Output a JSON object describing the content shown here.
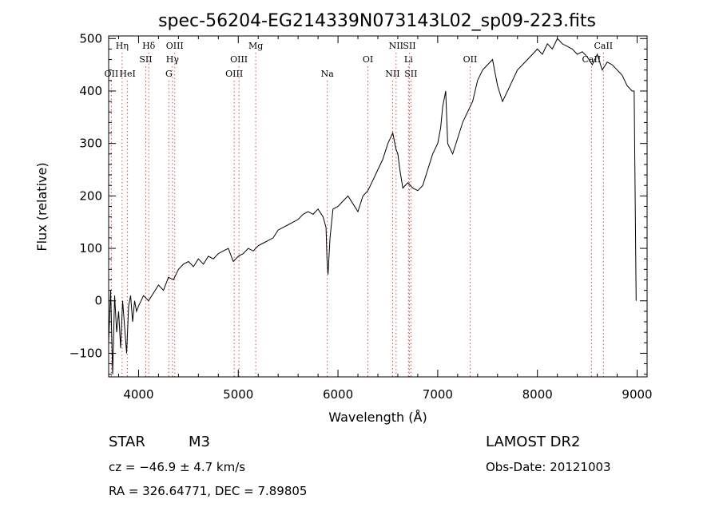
{
  "chart_data": {
    "type": "line",
    "title": "spec-56204-EG214339N073143L02_sp09-223.fits",
    "xlabel": "Wavelength (Å)",
    "ylabel": "Flux (relative)",
    "xlim": [
      3700,
      9100
    ],
    "ylim": [
      -145,
      505
    ],
    "xticks": [
      4000,
      5000,
      6000,
      7000,
      8000,
      9000
    ],
    "yticks": [
      -100,
      0,
      100,
      200,
      300,
      400,
      500
    ],
    "series": [
      {
        "x": [
          3700,
          3720,
          3740,
          3760,
          3780,
          3800,
          3820,
          3840,
          3860,
          3880,
          3900,
          3920,
          3940,
          3960,
          3980,
          4000,
          4050,
          4100,
          4150,
          4200,
          4250,
          4300,
          4350,
          4400,
          4450,
          4500,
          4550,
          4600,
          4650,
          4700,
          4750,
          4800,
          4850,
          4900,
          4950,
          5000,
          5050,
          5100,
          5150,
          5200,
          5250,
          5300,
          5350,
          5400,
          5450,
          5500,
          5550,
          5600,
          5650,
          5700,
          5750,
          5800,
          5850,
          5880,
          5890,
          5900,
          5920,
          5950,
          6000,
          6050,
          6100,
          6150,
          6200,
          6250,
          6300,
          6350,
          6400,
          6450,
          6500,
          6550,
          6580,
          6600,
          6620,
          6650,
          6700,
          6750,
          6800,
          6850,
          6900,
          6950,
          7000,
          7030,
          7050,
          7080,
          7100,
          7150,
          7200,
          7250,
          7300,
          7350,
          7400,
          7450,
          7500,
          7550,
          7600,
          7650,
          7700,
          7750,
          7800,
          7850,
          7900,
          7950,
          8000,
          8050,
          8100,
          8150,
          8200,
          8250,
          8300,
          8350,
          8400,
          8450,
          8500,
          8550,
          8600,
          8650,
          8700,
          8750,
          8800,
          8850,
          8900,
          8950,
          8970,
          8990
        ],
        "y": [
          -80,
          20,
          -140,
          10,
          -60,
          -20,
          -90,
          0,
          -50,
          -100,
          -10,
          10,
          -40,
          0,
          -20,
          -10,
          10,
          0,
          15,
          30,
          20,
          45,
          40,
          60,
          70,
          75,
          65,
          80,
          70,
          85,
          80,
          90,
          95,
          100,
          75,
          85,
          90,
          100,
          95,
          105,
          110,
          115,
          120,
          135,
          140,
          145,
          150,
          155,
          165,
          170,
          165,
          175,
          160,
          140,
          80,
          50,
          120,
          175,
          180,
          190,
          200,
          185,
          170,
          200,
          210,
          230,
          250,
          270,
          300,
          320,
          290,
          280,
          250,
          215,
          225,
          215,
          210,
          220,
          250,
          280,
          300,
          330,
          370,
          400,
          300,
          280,
          310,
          340,
          360,
          380,
          420,
          440,
          450,
          460,
          410,
          380,
          400,
          420,
          440,
          450,
          460,
          470,
          480,
          470,
          490,
          480,
          500,
          490,
          485,
          480,
          470,
          475,
          465,
          450,
          470,
          440,
          455,
          450,
          440,
          430,
          410,
          400,
          400,
          0
        ]
      }
    ],
    "line_markers": [
      {
        "label": "Hη",
        "wavelength": 3835,
        "row": 0
      },
      {
        "label": "OII",
        "wavelength": 3727,
        "row": 2
      },
      {
        "label": "HeI",
        "wavelength": 3889,
        "row": 2
      },
      {
        "label": "Hδ",
        "wavelength": 4102,
        "row": 0
      },
      {
        "label": "SII",
        "wavelength": 4072,
        "row": 1
      },
      {
        "label": "OIII",
        "wavelength": 4363,
        "row": 0
      },
      {
        "label": "Hγ",
        "wavelength": 4340,
        "row": 1
      },
      {
        "label": "G",
        "wavelength": 4304,
        "row": 2
      },
      {
        "label": "Mg",
        "wavelength": 5175,
        "row": 0
      },
      {
        "label": "OIII",
        "wavelength": 5007,
        "row": 1
      },
      {
        "label": "OIII",
        "wavelength": 4959,
        "row": 2
      },
      {
        "label": "Na",
        "wavelength": 5893,
        "row": 2
      },
      {
        "label": "OI",
        "wavelength": 6300,
        "row": 1
      },
      {
        "label": "NII",
        "wavelength": 6583,
        "row": 0
      },
      {
        "label": "SII",
        "wavelength": 6716,
        "row": 0
      },
      {
        "label": "Li",
        "wavelength": 6707,
        "row": 1
      },
      {
        "label": "NII",
        "wavelength": 6548,
        "row": 2
      },
      {
        "label": "SII",
        "wavelength": 6731,
        "row": 2
      },
      {
        "label": "OII",
        "wavelength": 7325,
        "row": 1
      },
      {
        "label": "CaII",
        "wavelength": 8662,
        "row": 0
      },
      {
        "label": "CaII",
        "wavelength": 8542,
        "row": 1
      }
    ],
    "grid": false
  },
  "info": {
    "object_class": "STAR",
    "subclass": "M3",
    "survey": "LAMOST DR2",
    "cz": "cz = −46.9 ± 4.7 km/s",
    "obs_date": "Obs-Date: 20121003",
    "coords": "RA = 326.64771, DEC =    7.89805"
  },
  "colors": {
    "spectrum": "#000000",
    "marker": "#d94a4a",
    "axis": "#000000"
  }
}
